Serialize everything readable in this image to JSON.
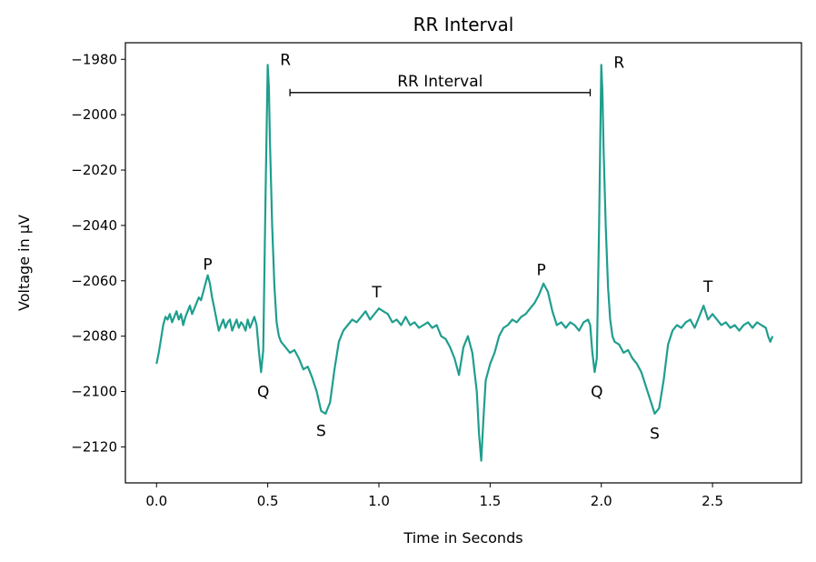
{
  "chart_data": {
    "type": "line",
    "title": "RR Interval",
    "xlabel": "Time in Seconds",
    "ylabel": "Voltage in µV",
    "xlim": [
      -0.14,
      2.9
    ],
    "ylim": [
      -2133,
      -1974
    ],
    "x_ticks": [
      0.0,
      0.5,
      1.0,
      1.5,
      2.0,
      2.5
    ],
    "x_tick_labels": [
      "0.0",
      "0.5",
      "1.0",
      "1.5",
      "2.0",
      "2.5"
    ],
    "y_ticks": [
      -1980,
      -2000,
      -2020,
      -2040,
      -2060,
      -2080,
      -2100,
      -2120
    ],
    "y_tick_labels": [
      "−1980",
      "−2000",
      "−2020",
      "−2040",
      "−2060",
      "−2080",
      "−2100",
      "−2120"
    ],
    "grid": false,
    "series": [
      {
        "color": "#1f9e8e",
        "x": [
          0.0,
          0.01,
          0.02,
          0.03,
          0.04,
          0.05,
          0.06,
          0.07,
          0.08,
          0.09,
          0.1,
          0.11,
          0.12,
          0.13,
          0.14,
          0.15,
          0.16,
          0.17,
          0.18,
          0.19,
          0.2,
          0.21,
          0.22,
          0.23,
          0.24,
          0.25,
          0.26,
          0.27,
          0.28,
          0.29,
          0.3,
          0.31,
          0.32,
          0.33,
          0.34,
          0.35,
          0.36,
          0.37,
          0.38,
          0.39,
          0.4,
          0.41,
          0.42,
          0.43,
          0.44,
          0.45,
          0.46,
          0.47,
          0.48,
          0.49,
          0.5,
          0.505,
          0.51,
          0.52,
          0.53,
          0.54,
          0.55,
          0.56,
          0.58,
          0.6,
          0.62,
          0.64,
          0.66,
          0.68,
          0.7,
          0.72,
          0.74,
          0.76,
          0.78,
          0.8,
          0.82,
          0.84,
          0.86,
          0.88,
          0.9,
          0.92,
          0.94,
          0.96,
          0.98,
          1.0,
          1.02,
          1.04,
          1.06,
          1.08,
          1.1,
          1.12,
          1.14,
          1.16,
          1.18,
          1.2,
          1.22,
          1.24,
          1.26,
          1.28,
          1.3,
          1.32,
          1.34,
          1.36,
          1.38,
          1.4,
          1.42,
          1.44,
          1.45,
          1.46,
          1.47,
          1.48,
          1.5,
          1.52,
          1.54,
          1.56,
          1.58,
          1.6,
          1.62,
          1.64,
          1.66,
          1.68,
          1.7,
          1.72,
          1.74,
          1.76,
          1.78,
          1.8,
          1.82,
          1.84,
          1.86,
          1.88,
          1.9,
          1.92,
          1.94,
          1.95,
          1.96,
          1.97,
          1.98,
          1.99,
          2.0,
          2.005,
          2.01,
          2.02,
          2.03,
          2.04,
          2.05,
          2.06,
          2.08,
          2.1,
          2.12,
          2.14,
          2.16,
          2.18,
          2.2,
          2.22,
          2.24,
          2.26,
          2.28,
          2.3,
          2.32,
          2.34,
          2.36,
          2.38,
          2.4,
          2.42,
          2.44,
          2.46,
          2.48,
          2.5,
          2.52,
          2.54,
          2.56,
          2.58,
          2.6,
          2.62,
          2.64,
          2.66,
          2.68,
          2.7,
          2.72,
          2.74,
          2.75,
          2.76,
          2.77
        ],
        "y": [
          -2090,
          -2086,
          -2081,
          -2076,
          -2073,
          -2074,
          -2072,
          -2075,
          -2073,
          -2071,
          -2074,
          -2072,
          -2076,
          -2073,
          -2071,
          -2069,
          -2072,
          -2070,
          -2068,
          -2066,
          -2067,
          -2064,
          -2061,
          -2058,
          -2061,
          -2066,
          -2070,
          -2074,
          -2078,
          -2076,
          -2074,
          -2077,
          -2075,
          -2074,
          -2078,
          -2076,
          -2074,
          -2077,
          -2075,
          -2076,
          -2078,
          -2074,
          -2077,
          -2075,
          -2073,
          -2076,
          -2085,
          -2093,
          -2085,
          -2030,
          -1982,
          -1990,
          -2010,
          -2040,
          -2062,
          -2075,
          -2080,
          -2082,
          -2084,
          -2086,
          -2085,
          -2088,
          -2092,
          -2091,
          -2095,
          -2100,
          -2107,
          -2108,
          -2104,
          -2092,
          -2082,
          -2078,
          -2076,
          -2074,
          -2075,
          -2073,
          -2071,
          -2074,
          -2072,
          -2070,
          -2071,
          -2072,
          -2075,
          -2074,
          -2076,
          -2073,
          -2076,
          -2075,
          -2077,
          -2076,
          -2075,
          -2077,
          -2076,
          -2080,
          -2081,
          -2084,
          -2088,
          -2094,
          -2084,
          -2080,
          -2086,
          -2100,
          -2115,
          -2125,
          -2110,
          -2096,
          -2090,
          -2086,
          -2080,
          -2077,
          -2076,
          -2074,
          -2075,
          -2073,
          -2072,
          -2070,
          -2068,
          -2065,
          -2061,
          -2064,
          -2071,
          -2076,
          -2075,
          -2077,
          -2075,
          -2076,
          -2078,
          -2075,
          -2074,
          -2076,
          -2086,
          -2093,
          -2088,
          -2040,
          -1982,
          -1992,
          -2012,
          -2040,
          -2062,
          -2074,
          -2080,
          -2082,
          -2083,
          -2086,
          -2085,
          -2088,
          -2090,
          -2093,
          -2098,
          -2103,
          -2108,
          -2106,
          -2096,
          -2083,
          -2078,
          -2076,
          -2077,
          -2075,
          -2074,
          -2077,
          -2073,
          -2069,
          -2074,
          -2072,
          -2074,
          -2076,
          -2075,
          -2077,
          -2076,
          -2078,
          -2076,
          -2075,
          -2077,
          -2075,
          -2076,
          -2077,
          -2080,
          -2082,
          -2080
        ]
      }
    ],
    "annotations": [
      {
        "text": "P",
        "x": 0.23,
        "y": -2056
      },
      {
        "text": "Q",
        "x": 0.48,
        "y": -2102
      },
      {
        "text": "R",
        "x": 0.58,
        "y": -1982
      },
      {
        "text": "S",
        "x": 0.74,
        "y": -2116
      },
      {
        "text": "T",
        "x": 0.99,
        "y": -2066
      },
      {
        "text": "P",
        "x": 1.73,
        "y": -2058
      },
      {
        "text": "Q",
        "x": 1.98,
        "y": -2102
      },
      {
        "text": "R",
        "x": 2.08,
        "y": -1983
      },
      {
        "text": "S",
        "x": 2.24,
        "y": -2117
      },
      {
        "text": "T",
        "x": 2.48,
        "y": -2064
      }
    ],
    "interval": {
      "label": "RR Interval",
      "x_start": 0.6,
      "x_end": 1.95,
      "y": -1992
    }
  }
}
